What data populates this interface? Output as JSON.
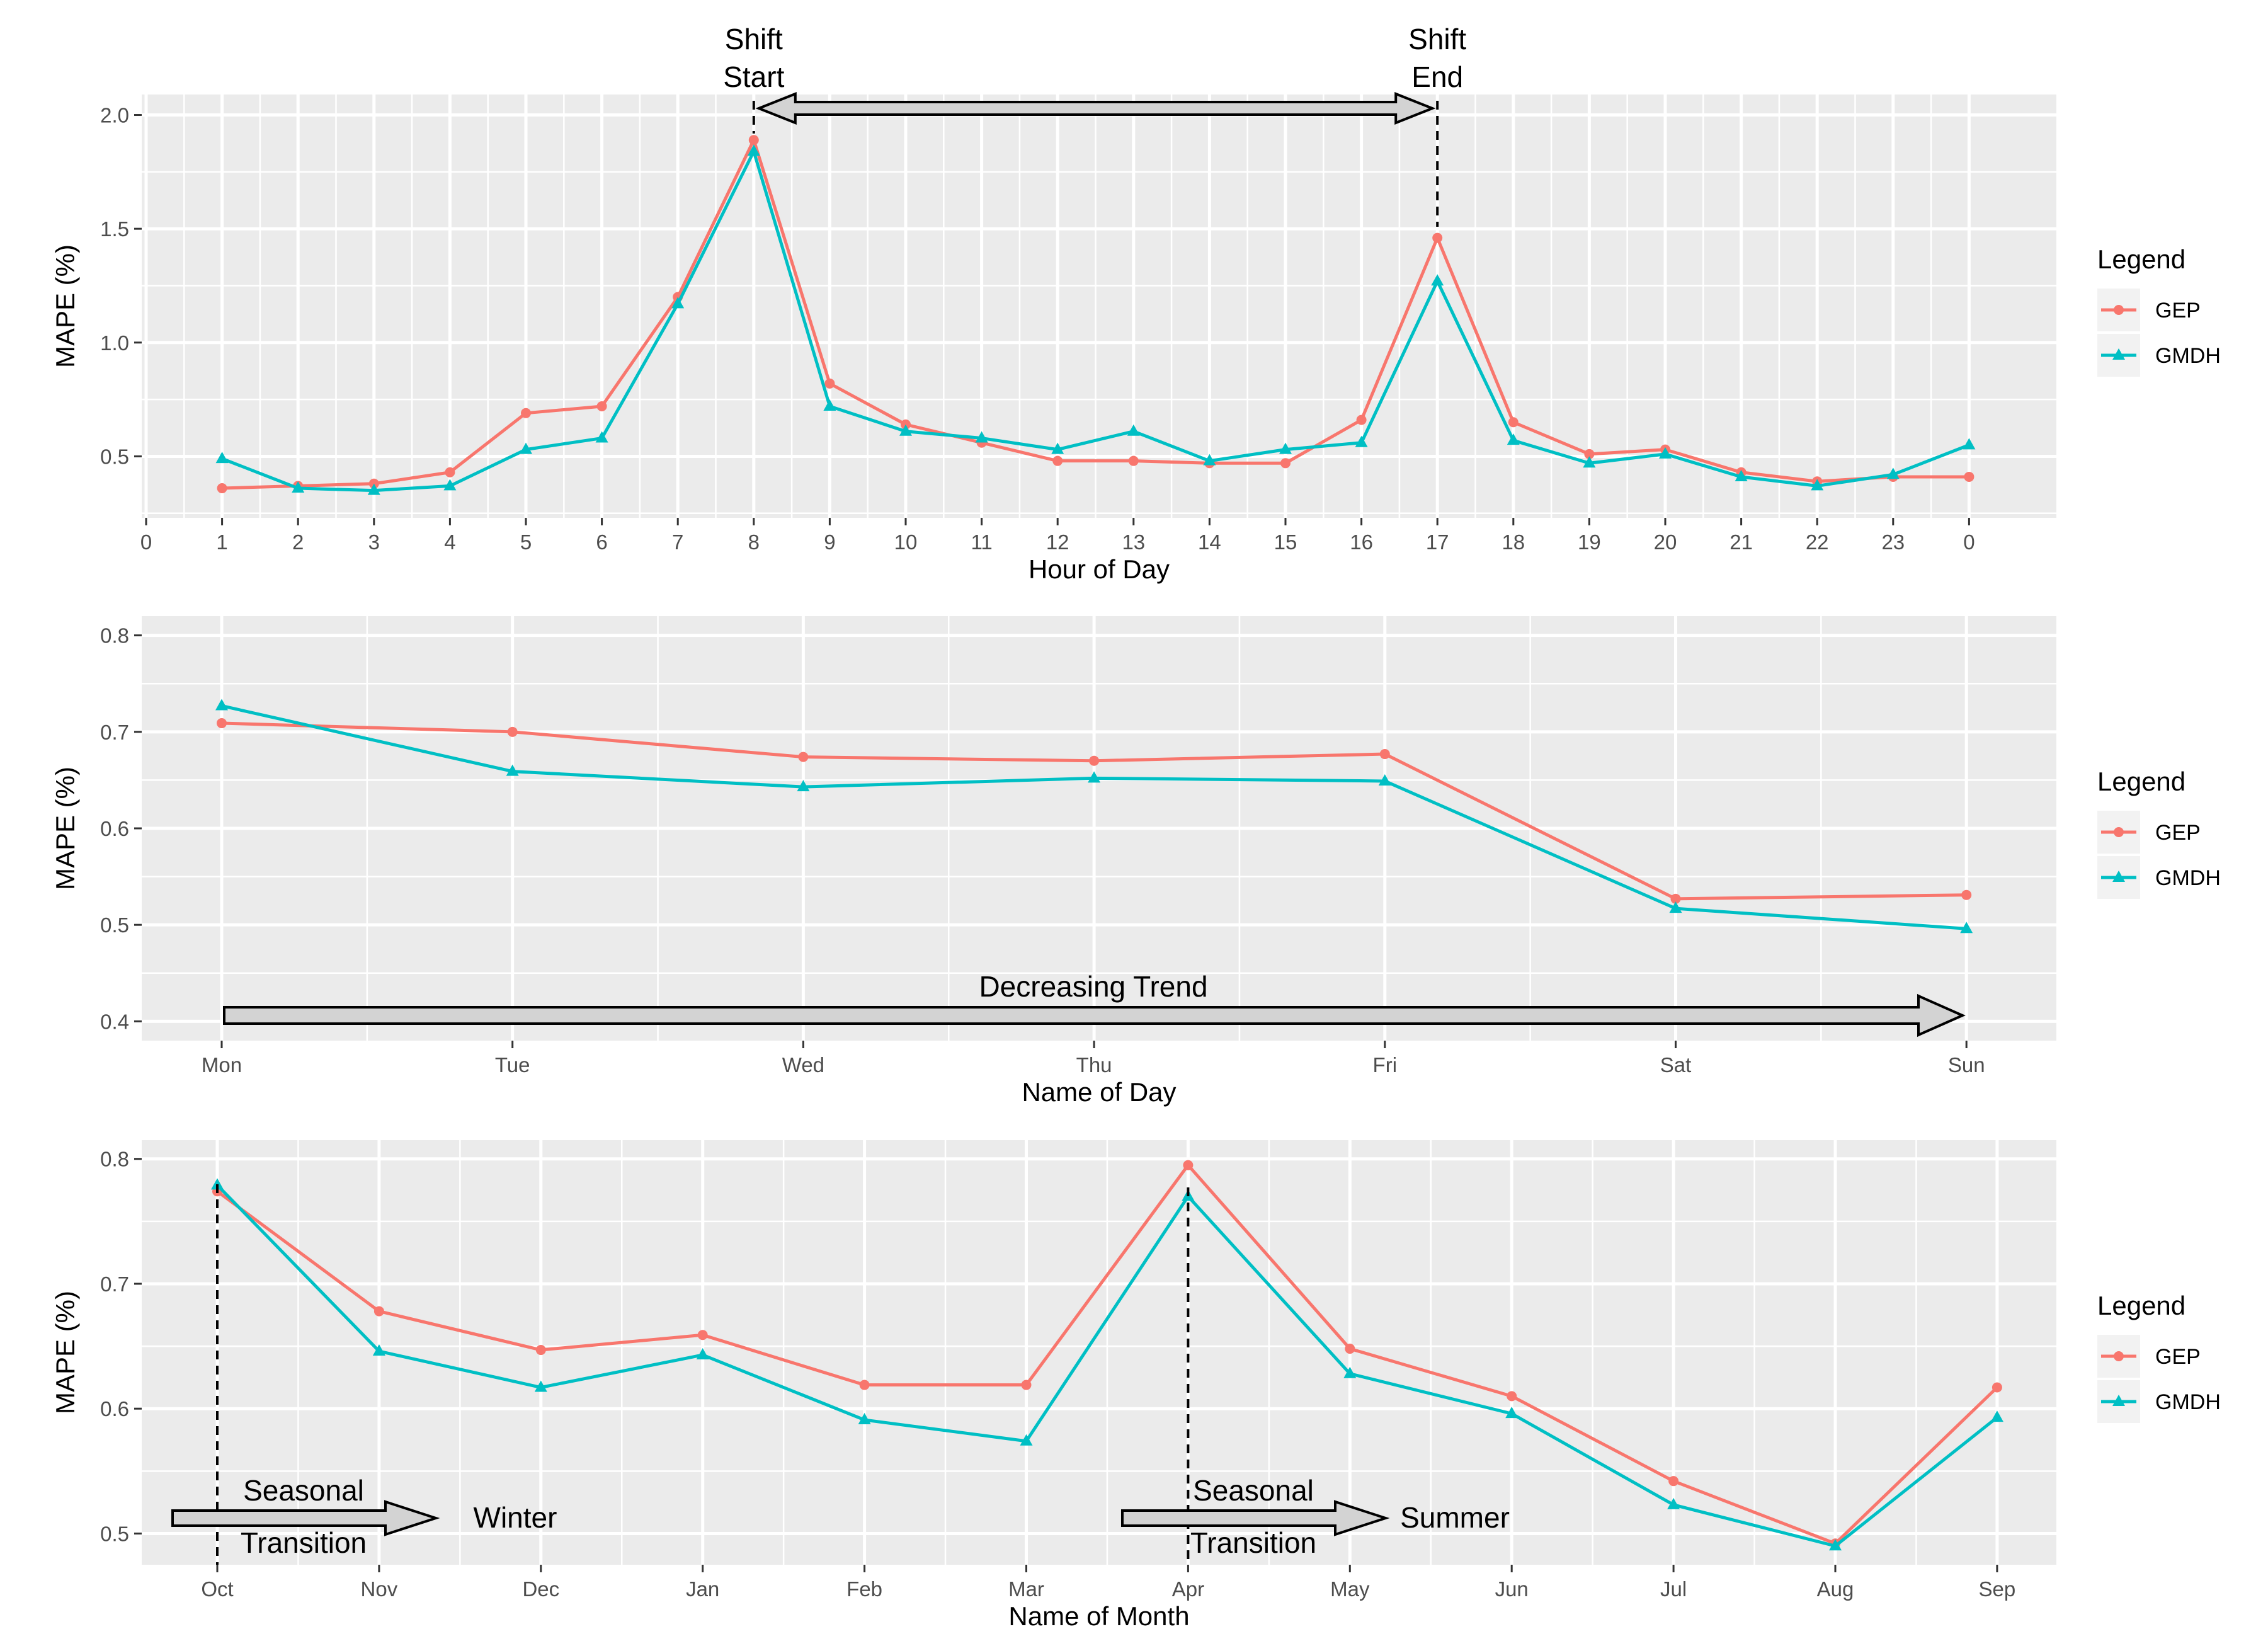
{
  "legend_title": "Legend",
  "colors": {
    "gep": "#F8766D",
    "gmdh": "#00BFC4",
    "panel": "#EBEBEB",
    "grid": "#FFFFFF",
    "arrow_fill": "#D3D3D3"
  },
  "chart_data": [
    {
      "type": "line",
      "xlabel": "Hour of Day",
      "ylabel": "MAPE (%)",
      "x_tick_labels": [
        "0",
        "1",
        "2",
        "3",
        "4",
        "5",
        "6",
        "7",
        "8",
        "9",
        "10",
        "11",
        "12",
        "13",
        "14",
        "15",
        "16",
        "17",
        "18",
        "19",
        "20",
        "21",
        "22",
        "23",
        "0"
      ],
      "y_ticks": [
        "0.5",
        "1.0",
        "1.5",
        "2.0"
      ],
      "categories": [
        "1",
        "2",
        "3",
        "4",
        "5",
        "6",
        "7",
        "8",
        "9",
        "10",
        "11",
        "12",
        "13",
        "14",
        "15",
        "16",
        "17",
        "18",
        "19",
        "20",
        "21",
        "22",
        "23",
        "0"
      ],
      "series": [
        {
          "name": "GEP",
          "marker": "circle",
          "values": [
            0.36,
            0.37,
            0.38,
            0.43,
            0.69,
            0.72,
            1.2,
            1.89,
            0.82,
            0.64,
            0.56,
            0.48,
            0.48,
            0.47,
            0.47,
            0.66,
            1.46,
            0.65,
            0.51,
            0.53,
            0.43,
            0.39,
            0.41,
            0.41
          ]
        },
        {
          "name": "GMDH",
          "marker": "triangle",
          "values": [
            0.49,
            0.36,
            0.35,
            0.37,
            0.53,
            0.58,
            1.17,
            1.84,
            0.72,
            0.61,
            0.58,
            0.53,
            0.61,
            0.48,
            0.53,
            0.56,
            1.27,
            0.57,
            0.47,
            0.51,
            0.41,
            0.37,
            0.42,
            0.55
          ]
        }
      ],
      "ylim": [
        0.23,
        2.09
      ],
      "annotations": [
        "Shift",
        "Start",
        "Shift",
        "End"
      ]
    },
    {
      "type": "line",
      "xlabel": "Name of Day",
      "ylabel": "MAPE (%)",
      "y_ticks": [
        "0.4",
        "0.5",
        "0.6",
        "0.7",
        "0.8"
      ],
      "categories": [
        "Mon",
        "Tue",
        "Wed",
        "Thu",
        "Fri",
        "Sat",
        "Sun"
      ],
      "series": [
        {
          "name": "GEP",
          "marker": "circle",
          "values": [
            0.709,
            0.7,
            0.674,
            0.67,
            0.677,
            0.527,
            0.531
          ]
        },
        {
          "name": "GMDH",
          "marker": "triangle",
          "values": [
            0.727,
            0.659,
            0.643,
            0.652,
            0.649,
            0.517,
            0.496
          ]
        }
      ],
      "ylim": [
        0.38,
        0.82
      ],
      "annotations": [
        "Decreasing Trend"
      ]
    },
    {
      "type": "line",
      "xlabel": "Name of Month",
      "ylabel": "MAPE (%)",
      "y_ticks": [
        "0.5",
        "0.6",
        "0.7",
        "0.8"
      ],
      "categories": [
        "Oct",
        "Nov",
        "Dec",
        "Jan",
        "Feb",
        "Mar",
        "Apr",
        "May",
        "Jun",
        "Jul",
        "Aug",
        "Sep"
      ],
      "series": [
        {
          "name": "GEP",
          "marker": "circle",
          "values": [
            0.774,
            0.678,
            0.647,
            0.659,
            0.619,
            0.619,
            0.795,
            0.648,
            0.61,
            0.542,
            0.492,
            0.617
          ]
        },
        {
          "name": "GMDH",
          "marker": "triangle",
          "values": [
            0.779,
            0.646,
            0.617,
            0.643,
            0.591,
            0.574,
            0.77,
            0.628,
            0.596,
            0.523,
            0.49,
            0.593
          ]
        }
      ],
      "ylim": [
        0.475,
        0.815
      ],
      "annotations": [
        "Seasonal",
        "Transition",
        "Winter",
        "Seasonal",
        "Transition",
        "Summer"
      ]
    }
  ]
}
